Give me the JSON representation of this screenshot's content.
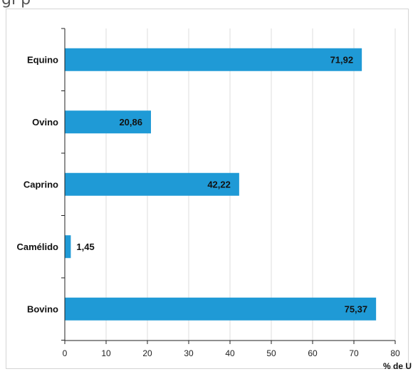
{
  "header": {
    "fragment_text": "gi p"
  },
  "chart_data": {
    "type": "bar",
    "orientation": "horizontal",
    "categories": [
      "Equino",
      "Ovino",
      "Caprino",
      "Camélido",
      "Bovino"
    ],
    "values": [
      71.92,
      20.86,
      42.22,
      1.45,
      75.37
    ],
    "value_labels": [
      "71,92",
      "20,86",
      "42,22",
      "1,45",
      "75,37"
    ],
    "title": "",
    "xlabel": "% de U",
    "ylabel": "",
    "xlim": [
      0,
      80
    ],
    "x_ticks": [
      0,
      10,
      20,
      30,
      40,
      50,
      60,
      70,
      80
    ],
    "grid": "vertical",
    "legend": "none",
    "bar_color": "#1f9ad6"
  }
}
